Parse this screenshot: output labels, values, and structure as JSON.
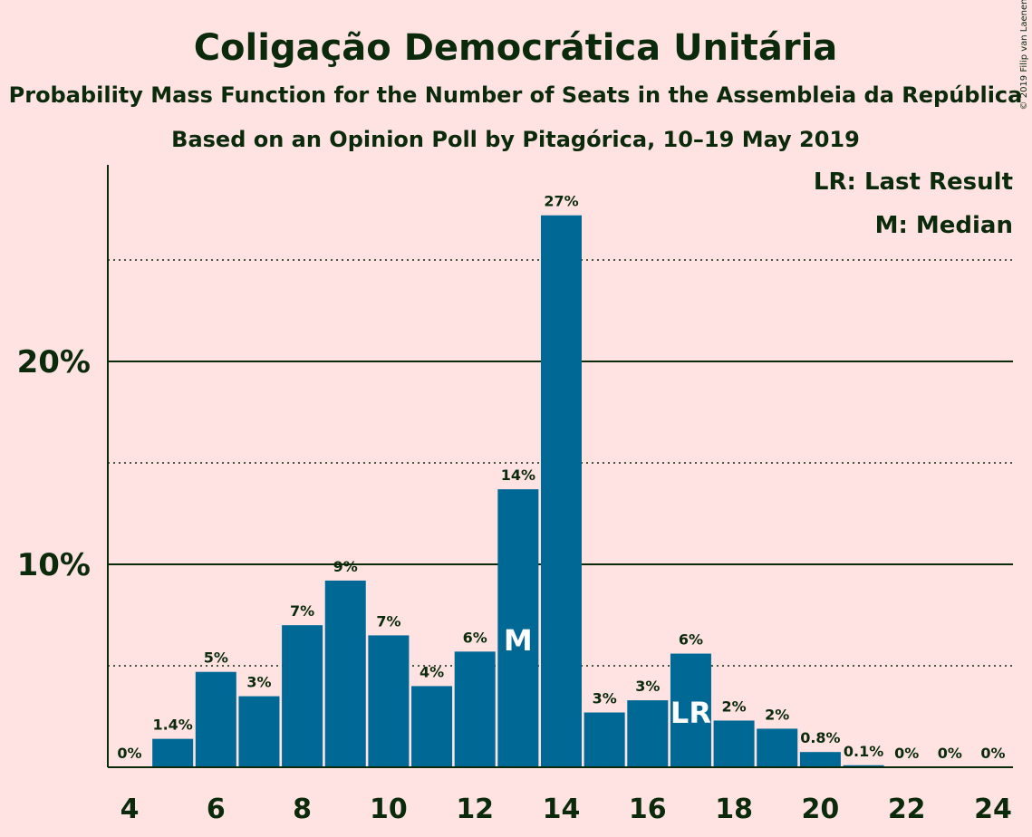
{
  "header": {
    "title": "Coligação Democrática Unitária",
    "subtitle": "Probability Mass Function for the Number of Seats in the Assembleia da República",
    "poll_line": "Based on an Opinion Poll by Pitagórica, 10–19 May 2019"
  },
  "legend": {
    "last_result": "LR: Last Result",
    "median": "M: Median"
  },
  "copyright": "© 2019 Filip van Laenen",
  "colors": {
    "background": "#FFE3E3",
    "bar": "#006895",
    "text": "#0B2A0B"
  },
  "chart_data": {
    "type": "bar",
    "title": "Coligação Democrática Unitária",
    "x": [
      4,
      5,
      6,
      7,
      8,
      9,
      10,
      11,
      12,
      13,
      14,
      15,
      16,
      17,
      18,
      19,
      20,
      21,
      22,
      23,
      24
    ],
    "values": [
      0,
      1.4,
      4.7,
      3.5,
      7.0,
      9.2,
      6.5,
      4.0,
      5.7,
      13.7,
      27.2,
      2.7,
      3.3,
      5.6,
      2.3,
      1.9,
      0.75,
      0.1,
      0,
      0,
      0
    ],
    "value_labels": [
      "0%",
      "1.4%",
      "5%",
      "3%",
      "7%",
      "9%",
      "7%",
      "4%",
      "6%",
      "14%",
      "27%",
      "3%",
      "3%",
      "6%",
      "2%",
      "2%",
      "0.8%",
      "0.1%",
      "0%",
      "0%",
      "0%"
    ],
    "x_tick_labels": [
      "4",
      "6",
      "8",
      "10",
      "12",
      "14",
      "16",
      "18",
      "20",
      "22",
      "24"
    ],
    "y_tick_labels": [
      "10%",
      "20%"
    ],
    "y_major_ticks": [
      10,
      20
    ],
    "y_minor_ticks": [
      5,
      15,
      25
    ],
    "ylim": [
      0,
      29.6
    ],
    "median_seat": 13,
    "median_marker": "M",
    "last_result_seat": 17,
    "last_result_marker": "LR",
    "grid": true,
    "legend_position": "top-right"
  }
}
